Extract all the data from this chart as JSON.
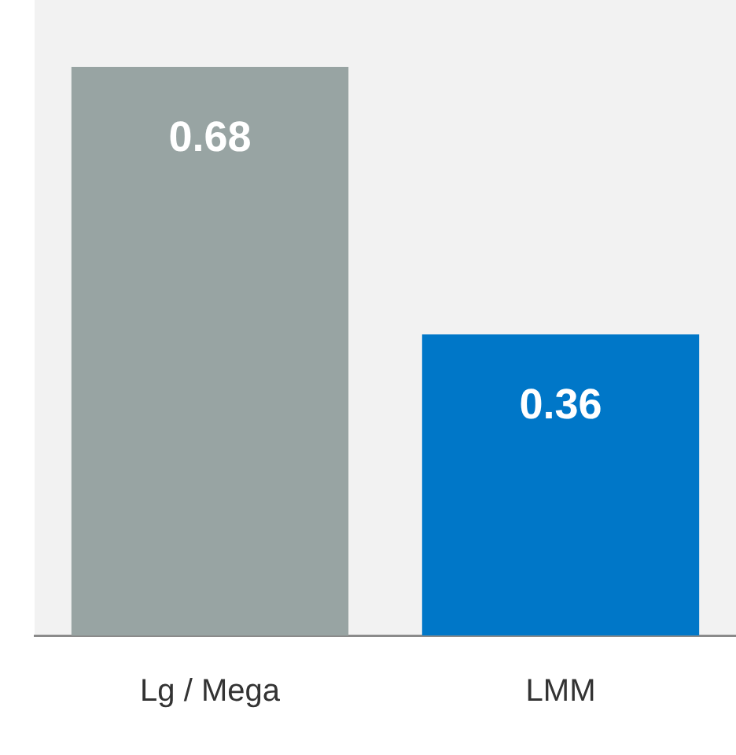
{
  "chart_data": {
    "type": "bar",
    "categories": [
      "Lg / Mega",
      "LMM"
    ],
    "values": [
      0.68,
      0.36
    ],
    "colors": [
      "#98a4a3",
      "#0077c8"
    ],
    "ylim": [
      0,
      0.76
    ],
    "tick_labels": "x",
    "data_labels": true,
    "grid": false,
    "legend": false
  }
}
